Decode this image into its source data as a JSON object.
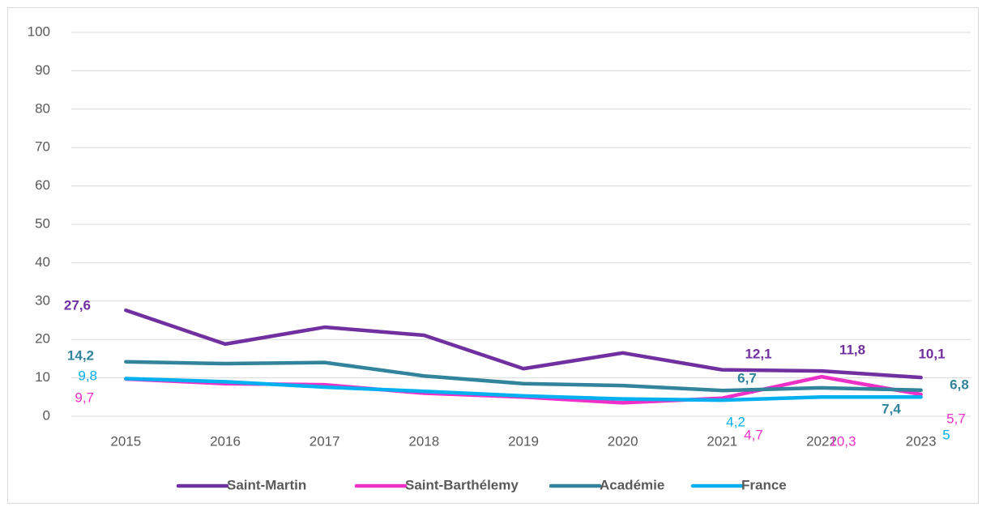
{
  "chart_data": {
    "type": "line",
    "categories": [
      "2015",
      "2016",
      "2017",
      "2018",
      "2019",
      "2020",
      "2021",
      "2022",
      "2023"
    ],
    "series": [
      {
        "name": "Saint-Martin",
        "color": "#7030a0",
        "values": [
          27.6,
          18.8,
          23.2,
          21.1,
          12.4,
          16.5,
          12.1,
          11.8,
          10.1
        ],
        "value_labels": [
          "27,6",
          null,
          null,
          null,
          null,
          null,
          "12,1",
          "11,8",
          "10,1"
        ]
      },
      {
        "name": "Saint-Barthélemy",
        "color": "#ee2fc8",
        "values": [
          9.7,
          8.5,
          8.2,
          6,
          5,
          3.5,
          4.7,
          10.3,
          5.7
        ],
        "value_labels": [
          "9,7",
          null,
          null,
          null,
          null,
          null,
          "4,7",
          "10,3",
          "5,7"
        ]
      },
      {
        "name": "Académie",
        "color": "#31849b",
        "values": [
          14.2,
          13.7,
          14,
          10.5,
          8.5,
          8,
          6.7,
          7.4,
          6.8
        ],
        "value_labels": [
          "14,2",
          null,
          null,
          null,
          null,
          null,
          "6,7",
          "7,4",
          "6,8"
        ]
      },
      {
        "name": "France",
        "color": "#00b0f0",
        "values": [
          9.8,
          9,
          7.6,
          6.5,
          5.3,
          4.5,
          4.2,
          5,
          5
        ],
        "value_labels": [
          "9,8",
          null,
          null,
          null,
          null,
          null,
          "4,2",
          null,
          "5"
        ]
      }
    ],
    "ylim": [
      0,
      100
    ],
    "yticks": [
      0,
      10,
      20,
      30,
      40,
      50,
      60,
      70,
      80,
      90,
      100
    ],
    "grid": true,
    "legend": "bottom"
  }
}
